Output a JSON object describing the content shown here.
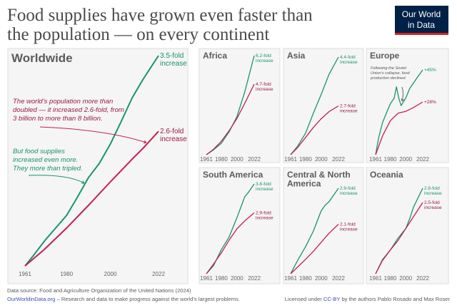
{
  "title_lines": [
    "Food supplies have grown even faster than",
    "the population — on every continent"
  ],
  "logo": {
    "lines": [
      "Our World",
      "in Data"
    ],
    "bg": "#002147",
    "accent": "#ce261e"
  },
  "colors": {
    "food": "#18936e",
    "population": "#c4204f",
    "population_text": "#9a1b45",
    "panel_bg": "#f5f5f5",
    "panel_border": "#dddddd"
  },
  "chart_data": [
    {
      "type": "line",
      "title": "Worldwide",
      "x_ticks": [
        "1961",
        "1980",
        "2000",
        "2022"
      ],
      "xlim": [
        1961,
        2022
      ],
      "ylim": [
        1,
        3.5
      ],
      "series": [
        {
          "name": "food",
          "end_label": [
            "3.5-fold",
            "increase"
          ],
          "x": [
            1961,
            1965,
            1970,
            1975,
            1980,
            1985,
            1990,
            1995,
            2000,
            2005,
            2010,
            2015,
            2022
          ],
          "y": [
            1,
            1.13,
            1.3,
            1.45,
            1.6,
            1.82,
            2.05,
            2.22,
            2.45,
            2.72,
            3.0,
            3.22,
            3.5
          ]
        },
        {
          "name": "population",
          "end_label": [
            "2.6-fold",
            "increase"
          ],
          "x": [
            1961,
            1970,
            1980,
            1990,
            2000,
            2010,
            2015,
            2022
          ],
          "y": [
            1,
            1.2,
            1.45,
            1.72,
            2.0,
            2.27,
            2.4,
            2.6
          ]
        }
      ],
      "annotations": [
        {
          "series": "population",
          "lines": [
            "The world’s population more than",
            "doubled — it increased 2.6-fold, from",
            "3 billion to more than 8 billion."
          ]
        },
        {
          "series": "food",
          "lines": [
            "But food supplies",
            "increased even more.",
            "They more than tripled."
          ]
        }
      ]
    },
    {
      "type": "line",
      "title": "Africa",
      "x_ticks": [
        "1961",
        "1980",
        "2000",
        "2022"
      ],
      "xlim": [
        1961,
        2022
      ],
      "ylim": [
        1,
        6.2
      ],
      "series": [
        {
          "name": "food",
          "end_label": [
            "6.2-fold",
            "increase"
          ],
          "x": [
            1961,
            1970,
            1980,
            1990,
            2000,
            2010,
            2022
          ],
          "y": [
            1,
            1.25,
            1.6,
            2.2,
            3.0,
            4.3,
            6.2
          ]
        },
        {
          "name": "population",
          "end_label": [
            "4.7-fold",
            "increase"
          ],
          "x": [
            1961,
            1970,
            1980,
            1990,
            2000,
            2010,
            2022
          ],
          "y": [
            1,
            1.28,
            1.7,
            2.26,
            2.9,
            3.7,
            4.7
          ]
        }
      ]
    },
    {
      "type": "line",
      "title": "Asia",
      "x_ticks": [
        "1961",
        "1980",
        "2000",
        "2022"
      ],
      "xlim": [
        1961,
        2022
      ],
      "ylim": [
        1,
        4.4
      ],
      "series": [
        {
          "name": "food",
          "end_label": [
            "4.4-fold",
            "increase"
          ],
          "x": [
            1961,
            1970,
            1980,
            1990,
            2000,
            2010,
            2022
          ],
          "y": [
            1,
            1.3,
            1.75,
            2.45,
            3.1,
            3.8,
            4.4
          ]
        },
        {
          "name": "population",
          "end_label": [
            "2.7-fold",
            "increase"
          ],
          "x": [
            1961,
            1970,
            1980,
            1990,
            2000,
            2010,
            2022
          ],
          "y": [
            1,
            1.25,
            1.6,
            1.95,
            2.25,
            2.5,
            2.7
          ]
        }
      ]
    },
    {
      "type": "line",
      "title": "Europe",
      "x_ticks": [
        "1961",
        "1980",
        "2000",
        "2022"
      ],
      "xlim": [
        1961,
        2022
      ],
      "ylim": [
        1,
        1.45
      ],
      "series": [
        {
          "name": "food",
          "end_label": [
            "+45%"
          ],
          "x": [
            1961,
            1965,
            1970,
            1975,
            1980,
            1985,
            1988,
            1991,
            1994,
            2000,
            2005,
            2010,
            2015,
            2022
          ],
          "y": [
            1,
            1.09,
            1.17,
            1.22,
            1.27,
            1.3,
            1.36,
            1.3,
            1.26,
            1.3,
            1.35,
            1.38,
            1.41,
            1.45
          ]
        },
        {
          "name": "population",
          "end_label": [
            "+28%"
          ],
          "x": [
            1961,
            1970,
            1980,
            1990,
            2000,
            2010,
            2022
          ],
          "y": [
            1,
            1.1,
            1.18,
            1.22,
            1.23,
            1.25,
            1.28
          ]
        }
      ],
      "annotations": [
        {
          "series": "food",
          "lines": [
            "Following the Soviet",
            "Union’s collapse, food",
            "production declined."
          ]
        }
      ]
    },
    {
      "type": "line",
      "title": "South America",
      "x_ticks": [
        "1961",
        "1980",
        "2000",
        "2022"
      ],
      "xlim": [
        1961,
        2022
      ],
      "ylim": [
        1,
        3.8
      ],
      "series": [
        {
          "name": "food",
          "end_label": [
            "3.8-fold",
            "increase"
          ],
          "x": [
            1961,
            1970,
            1980,
            1990,
            2000,
            2010,
            2015,
            2022
          ],
          "y": [
            1,
            1.25,
            1.75,
            2.15,
            2.75,
            3.4,
            3.55,
            3.8
          ]
        },
        {
          "name": "population",
          "end_label": [
            "2.9-fold",
            "increase"
          ],
          "x": [
            1961,
            1970,
            1980,
            1990,
            2000,
            2010,
            2022
          ],
          "y": [
            1,
            1.3,
            1.65,
            2.05,
            2.4,
            2.65,
            2.9
          ]
        }
      ]
    },
    {
      "type": "line",
      "title": "Central & North America",
      "title_lines": [
        "Central & North",
        "America"
      ],
      "x_ticks": [
        "1961",
        "1980",
        "2000",
        "2022"
      ],
      "xlim": [
        1961,
        2022
      ],
      "ylim": [
        1,
        2.9
      ],
      "series": [
        {
          "name": "food",
          "end_label": [
            "2.9-fold",
            "increase"
          ],
          "x": [
            1961,
            1970,
            1980,
            1990,
            2000,
            2005,
            2010,
            2022
          ],
          "y": [
            1,
            1.3,
            1.6,
            1.95,
            2.4,
            2.52,
            2.6,
            2.9
          ]
        },
        {
          "name": "population",
          "end_label": [
            "2.1-fold",
            "increase"
          ],
          "x": [
            1961,
            1970,
            1980,
            1990,
            2000,
            2010,
            2022
          ],
          "y": [
            1,
            1.15,
            1.32,
            1.5,
            1.7,
            1.9,
            2.1
          ]
        }
      ]
    },
    {
      "type": "line",
      "title": "Oceania",
      "x_ticks": [
        "1961",
        "1980",
        "2000",
        "2022"
      ],
      "xlim": [
        1961,
        2022
      ],
      "ylim": [
        1,
        2.8
      ],
      "series": [
        {
          "name": "food",
          "end_label": [
            "2.8-fold",
            "increase"
          ],
          "x": [
            1961,
            1970,
            1980,
            1990,
            2000,
            2005,
            2010,
            2022
          ],
          "y": [
            1,
            1.3,
            1.5,
            1.75,
            1.95,
            2.15,
            2.4,
            2.8
          ]
        },
        {
          "name": "population",
          "end_label": [
            "2.5-fold",
            "increase"
          ],
          "x": [
            1961,
            1970,
            1980,
            1990,
            2000,
            2010,
            2022
          ],
          "y": [
            1,
            1.28,
            1.5,
            1.7,
            1.95,
            2.2,
            2.5
          ]
        }
      ]
    }
  ],
  "footer": {
    "source": "Data source: Food and Agriculture Organization of the United Nations (2024)",
    "site_link": "OurWorldinData.org",
    "tagline": " – Research and data to make progress against the world’s largest problems.",
    "license_prefix": "Licensed under ",
    "license_link": "CC-BY",
    "license_suffix": " by the authors Pablo Rosado and Max Roser"
  }
}
